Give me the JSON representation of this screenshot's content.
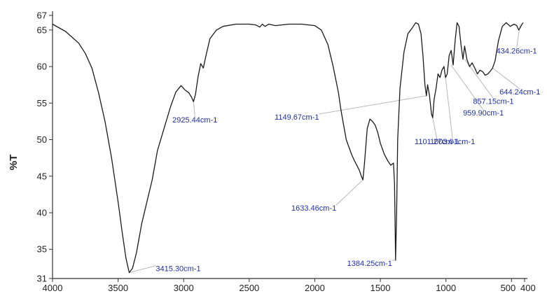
{
  "chart_data": {
    "type": "line",
    "title": "",
    "xlabel": "",
    "ylabel": "%T",
    "xlim": [
      4000,
      400
    ],
    "ylim": [
      31,
      67
    ],
    "x_reversed": true,
    "grid": false,
    "line_color": "#1a1a1a",
    "annotation_color": "#2030a8",
    "leader_color": "#b8b8b8",
    "x_ticks": [
      4000,
      3500,
      3000,
      2500,
      2000,
      1500,
      1000,
      500,
      400
    ],
    "x_tick_labels": [
      "4000",
      "3500",
      "3000",
      "2500",
      "2000",
      "1500",
      "1000",
      "500",
      "400"
    ],
    "y_ticks": [
      31,
      35,
      40,
      45,
      50,
      55,
      60,
      65,
      67
    ],
    "y_tick_labels": [
      "31",
      "35",
      "40",
      "45",
      "50",
      "55",
      "60",
      "65",
      "67"
    ],
    "series": [
      {
        "x": [
          4000,
          3900,
          3800,
          3750,
          3700,
          3650,
          3600,
          3550,
          3500,
          3470,
          3440,
          3415,
          3390,
          3360,
          3320,
          3280,
          3240,
          3200,
          3150,
          3100,
          3060,
          3020,
          2990,
          2960,
          2940,
          2925,
          2910,
          2890,
          2870,
          2850,
          2830,
          2800,
          2750,
          2700,
          2600,
          2500,
          2450,
          2420,
          2400,
          2380,
          2350,
          2300,
          2200,
          2100,
          2000,
          1950,
          1900,
          1860,
          1820,
          1800,
          1780,
          1760,
          1740,
          1720,
          1700,
          1680,
          1660,
          1645,
          1633,
          1620,
          1600,
          1580,
          1560,
          1540,
          1520,
          1500,
          1470,
          1440,
          1420,
          1400,
          1392,
          1384,
          1376,
          1368,
          1350,
          1320,
          1290,
          1260,
          1230,
          1210,
          1190,
          1175,
          1160,
          1149,
          1140,
          1125,
          1110,
          1101,
          1090,
          1075,
          1060,
          1045,
          1030,
          1015,
          1003,
          990,
          975,
          960,
          945,
          930,
          915,
          900,
          885,
          870,
          857,
          840,
          820,
          800,
          780,
          760,
          740,
          720,
          700,
          680,
          660,
          644,
          625,
          600,
          570,
          540,
          510,
          480,
          460,
          445,
          434,
          420,
          410
        ],
        "y": [
          65.8,
          64.8,
          63.2,
          61.8,
          59.8,
          56.5,
          52.5,
          47.5,
          41.5,
          37.5,
          33.8,
          31.8,
          32.4,
          34.5,
          38.5,
          41.5,
          44.5,
          48.5,
          51.5,
          54.5,
          56.5,
          57.4,
          56.8,
          56.4,
          55.8,
          55.2,
          56.2,
          58.6,
          60.4,
          59.8,
          61.5,
          63.8,
          65.0,
          65.5,
          65.8,
          65.8,
          65.7,
          65.4,
          65.8,
          65.5,
          65.8,
          65.6,
          65.8,
          65.8,
          65.6,
          65.0,
          63.0,
          60.0,
          56.5,
          54.0,
          52.0,
          50.0,
          49.0,
          48.0,
          47.2,
          46.5,
          45.8,
          45.0,
          44.5,
          47.0,
          51.5,
          52.8,
          52.5,
          52.0,
          51.0,
          49.5,
          48.0,
          47.0,
          46.5,
          46.8,
          44.0,
          33.5,
          40.0,
          50.0,
          57.0,
          62.0,
          64.5,
          65.2,
          66.0,
          65.8,
          64.5,
          61.5,
          57.5,
          56.0,
          57.5,
          56.0,
          53.5,
          53.0,
          55.5,
          57.0,
          59.0,
          58.5,
          59.5,
          60.0,
          58.5,
          59.0,
          61.5,
          62.2,
          60.2,
          63.5,
          66.0,
          65.5,
          63.0,
          61.0,
          62.8,
          61.0,
          60.0,
          60.5,
          59.8,
          59.0,
          59.5,
          59.3,
          58.8,
          59.0,
          59.4,
          59.8,
          60.8,
          63.5,
          65.5,
          66.0,
          65.5,
          65.8,
          65.6,
          65.0,
          65.3,
          65.8,
          66.0
        ]
      }
    ],
    "annotations": [
      {
        "label": "3415.30cm-1",
        "x": 3415,
        "y": 31.8
      },
      {
        "label": "2925.44cm-1",
        "x": 2925,
        "y": 55.2
      },
      {
        "label": "1633.46cm-1",
        "x": 1633,
        "y": 44.5
      },
      {
        "label": "1384.25cm-1",
        "x": 1384,
        "y": 33.5
      },
      {
        "label": "1149.67cm-1",
        "x": 1149,
        "y": 56.0
      },
      {
        "label": "1101.27cm-1",
        "x": 1101,
        "y": 53.0
      },
      {
        "label": "1003.01cm-1",
        "x": 1003,
        "y": 58.5
      },
      {
        "label": "959.90cm-1",
        "x": 960,
        "y": 60.2
      },
      {
        "label": "857.15cm-1",
        "x": 857,
        "y": 61.0
      },
      {
        "label": "644.24cm-1",
        "x": 644,
        "y": 59.8
      },
      {
        "label": "434.26cm-1",
        "x": 434,
        "y": 65.8
      }
    ]
  }
}
